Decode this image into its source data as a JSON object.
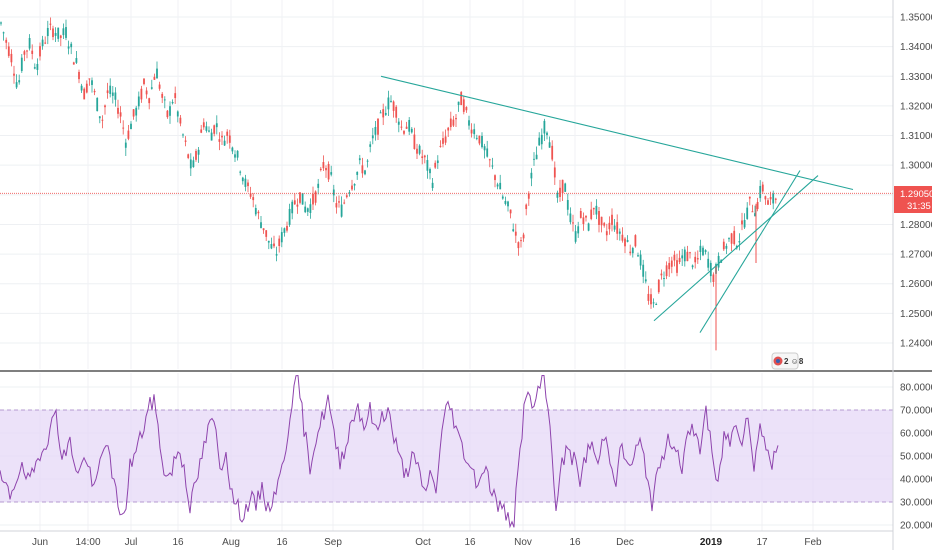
{
  "chart_data": [
    {
      "type": "candlestick",
      "title": "",
      "price_axis": {
        "ticks": [
          "1.35000",
          "1.34000",
          "1.33000",
          "1.32000",
          "1.31000",
          "1.30000",
          "1.28000",
          "1.27000",
          "1.26000",
          "1.25000",
          "1.24000"
        ],
        "range": [
          1.2325,
          1.3545
        ]
      },
      "last_price": {
        "value": 1.2905,
        "label": "1.29050",
        "countdown": "31:35",
        "color": "#ef5350"
      },
      "time_axis": {
        "labels": [
          {
            "text": "Jun",
            "bold": false
          },
          {
            "text": "14:00",
            "bold": false
          },
          {
            "text": "Jul",
            "bold": false
          },
          {
            "text": "16",
            "bold": false
          },
          {
            "text": "Aug",
            "bold": false
          },
          {
            "text": "16",
            "bold": false
          },
          {
            "text": "Sep",
            "bold": false
          },
          {
            "text": "Oct",
            "bold": false
          },
          {
            "text": "16",
            "bold": false
          },
          {
            "text": "Nov",
            "bold": false
          },
          {
            "text": "16",
            "bold": false
          },
          {
            "text": "Dec",
            "bold": false
          },
          {
            "text": "2019",
            "bold": true
          },
          {
            "text": "17",
            "bold": false
          },
          {
            "text": "Feb",
            "bold": false
          }
        ]
      },
      "ohlc_path": [
        [
          0,
          1.349
        ],
        [
          6,
          1.342
        ],
        [
          12,
          1.336
        ],
        [
          18,
          1.326
        ],
        [
          24,
          1.338
        ],
        [
          30,
          1.341
        ],
        [
          36,
          1.333
        ],
        [
          42,
          1.34
        ],
        [
          48,
          1.345
        ],
        [
          54,
          1.346
        ],
        [
          60,
          1.343
        ],
        [
          66,
          1.345
        ],
        [
          72,
          1.338
        ],
        [
          78,
          1.333
        ],
        [
          84,
          1.324
        ],
        [
          90,
          1.33
        ],
        [
          96,
          1.322
        ],
        [
          102,
          1.315
        ],
        [
          108,
          1.325
        ],
        [
          114,
          1.323
        ],
        [
          120,
          1.318
        ],
        [
          126,
          1.308
        ],
        [
          132,
          1.315
        ],
        [
          138,
          1.32
        ],
        [
          144,
          1.327
        ],
        [
          150,
          1.323
        ],
        [
          156,
          1.333
        ],
        [
          162,
          1.323
        ],
        [
          168,
          1.316
        ],
        [
          174,
          1.324
        ],
        [
          180,
          1.314
        ],
        [
          186,
          1.306
        ],
        [
          192,
          1.298
        ],
        [
          198,
          1.305
        ],
        [
          204,
          1.315
        ],
        [
          210,
          1.31
        ],
        [
          216,
          1.314
        ],
        [
          222,
          1.308
        ],
        [
          228,
          1.311
        ],
        [
          234,
          1.306
        ],
        [
          240,
          1.3
        ],
        [
          246,
          1.293
        ],
        [
          252,
          1.29
        ],
        [
          258,
          1.283
        ],
        [
          264,
          1.279
        ],
        [
          270,
          1.273
        ],
        [
          276,
          1.27
        ],
        [
          282,
          1.276
        ],
        [
          288,
          1.281
        ],
        [
          294,
          1.287
        ],
        [
          300,
          1.29
        ],
        [
          306,
          1.285
        ],
        [
          312,
          1.287
        ],
        [
          318,
          1.292
        ],
        [
          324,
          1.301
        ],
        [
          330,
          1.297
        ],
        [
          336,
          1.287
        ],
        [
          342,
          1.285
        ],
        [
          348,
          1.292
        ],
        [
          354,
          1.295
        ],
        [
          360,
          1.3
        ],
        [
          366,
          1.298
        ],
        [
          372,
          1.308
        ],
        [
          378,
          1.313
        ],
        [
          384,
          1.318
        ],
        [
          390,
          1.322
        ],
        [
          396,
          1.319
        ],
        [
          402,
          1.312
        ],
        [
          408,
          1.314
        ],
        [
          414,
          1.308
        ],
        [
          420,
          1.304
        ],
        [
          426,
          1.301
        ],
        [
          432,
          1.294
        ],
        [
          438,
          1.303
        ],
        [
          444,
          1.308
        ],
        [
          450,
          1.313
        ],
        [
          456,
          1.316
        ],
        [
          462,
          1.323
        ],
        [
          468,
          1.315
        ],
        [
          474,
          1.312
        ],
        [
          480,
          1.309
        ],
        [
          486,
          1.304
        ],
        [
          492,
          1.299
        ],
        [
          498,
          1.294
        ],
        [
          504,
          1.288
        ],
        [
          510,
          1.284
        ],
        [
          516,
          1.276
        ],
        [
          522,
          1.272
        ],
        [
          528,
          1.29
        ],
        [
          534,
          1.3
        ],
        [
          540,
          1.308
        ],
        [
          546,
          1.314
        ],
        [
          552,
          1.305
        ],
        [
          558,
          1.287
        ],
        [
          564,
          1.295
        ],
        [
          570,
          1.282
        ],
        [
          576,
          1.276
        ],
        [
          582,
          1.284
        ],
        [
          588,
          1.279
        ],
        [
          594,
          1.287
        ],
        [
          600,
          1.281
        ],
        [
          606,
          1.277
        ],
        [
          612,
          1.282
        ],
        [
          618,
          1.278
        ],
        [
          624,
          1.276
        ],
        [
          630,
          1.272
        ],
        [
          636,
          1.274
        ],
        [
          642,
          1.266
        ],
        [
          648,
          1.256
        ],
        [
          654,
          1.252
        ],
        [
          660,
          1.261
        ],
        [
          666,
          1.265
        ],
        [
          672,
          1.268
        ],
        [
          678,
          1.266
        ],
        [
          684,
          1.27
        ],
        [
          690,
          1.269
        ],
        [
          696,
          1.266
        ],
        [
          702,
          1.272
        ],
        [
          708,
          1.268
        ],
        [
          714,
          1.262
        ],
        [
          720,
          1.269
        ],
        [
          726,
          1.273
        ],
        [
          732,
          1.276
        ],
        [
          738,
          1.274
        ],
        [
          744,
          1.281
        ],
        [
          750,
          1.287
        ],
        [
          756,
          1.285
        ],
        [
          762,
          1.293
        ],
        [
          768,
          1.287
        ],
        [
          774,
          1.288
        ],
        [
          778,
          1.2905
        ]
      ],
      "trendlines": [
        {
          "p1": [
            381,
            1.33
          ],
          "p2": [
            853,
            1.2918
          ],
          "color": "#26a69a"
        },
        {
          "p1": [
            654,
            1.2475
          ],
          "p2": [
            818,
            1.2965
          ],
          "color": "#26a69a"
        },
        {
          "p1": [
            700,
            1.2435
          ],
          "p2": [
            800,
            1.2982
          ],
          "color": "#26a69a"
        }
      ],
      "spike_lows": [
        [
          716,
          1.2375
        ],
        [
          756,
          1.267
        ]
      ],
      "badge": {
        "text": "2 ☺8"
      },
      "colors": {
        "up": "#26a69a",
        "down": "#ef5350",
        "grid": "#eef0f3"
      }
    },
    {
      "type": "line",
      "title": "",
      "y_axis": {
        "ticks": [
          "80.0000",
          "70.0000",
          "60.0000",
          "50.0000",
          "40.0000",
          "30.0000",
          "20.0000"
        ],
        "range": [
          17.5,
          87.0
        ]
      },
      "band": {
        "upper": 70,
        "lower": 30,
        "color": "#e6d8f7"
      },
      "series_points": [
        [
          0,
          40
        ],
        [
          10,
          33
        ],
        [
          20,
          45
        ],
        [
          30,
          38
        ],
        [
          40,
          52
        ],
        [
          50,
          60
        ],
        [
          56,
          71
        ],
        [
          62,
          48
        ],
        [
          70,
          56
        ],
        [
          78,
          42
        ],
        [
          86,
          50
        ],
        [
          94,
          34
        ],
        [
          100,
          47
        ],
        [
          106,
          58
        ],
        [
          112,
          41
        ],
        [
          118,
          30
        ],
        [
          124,
          22
        ],
        [
          130,
          46
        ],
        [
          136,
          52
        ],
        [
          142,
          60
        ],
        [
          148,
          70
        ],
        [
          154,
          75
        ],
        [
          160,
          55
        ],
        [
          166,
          40
        ],
        [
          172,
          44
        ],
        [
          178,
          53
        ],
        [
          184,
          46
        ],
        [
          190,
          28
        ],
        [
          196,
          38
        ],
        [
          202,
          50
        ],
        [
          208,
          61
        ],
        [
          214,
          66
        ],
        [
          220,
          45
        ],
        [
          226,
          52
        ],
        [
          232,
          33
        ],
        [
          238,
          27
        ],
        [
          244,
          24
        ],
        [
          250,
          32
        ],
        [
          256,
          28
        ],
        [
          262,
          37
        ],
        [
          268,
          26
        ],
        [
          274,
          34
        ],
        [
          280,
          40
        ],
        [
          286,
          55
        ],
        [
          292,
          75
        ],
        [
          298,
          84
        ],
        [
          304,
          62
        ],
        [
          310,
          46
        ],
        [
          316,
          58
        ],
        [
          322,
          66
        ],
        [
          328,
          75
        ],
        [
          334,
          58
        ],
        [
          340,
          48
        ],
        [
          346,
          55
        ],
        [
          352,
          66
        ],
        [
          358,
          72
        ],
        [
          364,
          63
        ],
        [
          370,
          70
        ],
        [
          376,
          60
        ],
        [
          382,
          68
        ],
        [
          388,
          70
        ],
        [
          394,
          58
        ],
        [
          400,
          48
        ],
        [
          406,
          42
        ],
        [
          412,
          50
        ],
        [
          418,
          44
        ],
        [
          424,
          34
        ],
        [
          430,
          42
        ],
        [
          436,
          36
        ],
        [
          442,
          60
        ],
        [
          448,
          74
        ],
        [
          454,
          66
        ],
        [
          460,
          56
        ],
        [
          466,
          50
        ],
        [
          472,
          44
        ],
        [
          478,
          38
        ],
        [
          484,
          46
        ],
        [
          490,
          38
        ],
        [
          496,
          30
        ],
        [
          502,
          27
        ],
        [
          508,
          23
        ],
        [
          514,
          22
        ],
        [
          520,
          52
        ],
        [
          526,
          79
        ],
        [
          532,
          70
        ],
        [
          538,
          78
        ],
        [
          544,
          84
        ],
        [
          550,
          62
        ],
        [
          556,
          29
        ],
        [
          562,
          46
        ],
        [
          568,
          54
        ],
        [
          574,
          48
        ],
        [
          580,
          40
        ],
        [
          586,
          50
        ],
        [
          592,
          56
        ],
        [
          598,
          45
        ],
        [
          604,
          60
        ],
        [
          610,
          50
        ],
        [
          616,
          40
        ],
        [
          622,
          55
        ],
        [
          628,
          44
        ],
        [
          634,
          50
        ],
        [
          640,
          56
        ],
        [
          646,
          44
        ],
        [
          652,
          30
        ],
        [
          658,
          42
        ],
        [
          664,
          52
        ],
        [
          670,
          58
        ],
        [
          676,
          54
        ],
        [
          682,
          46
        ],
        [
          688,
          58
        ],
        [
          694,
          62
        ],
        [
          700,
          53
        ],
        [
          706,
          71
        ],
        [
          712,
          50
        ],
        [
          718,
          36
        ],
        [
          724,
          60
        ],
        [
          730,
          56
        ],
        [
          736,
          65
        ],
        [
          742,
          58
        ],
        [
          748,
          70
        ],
        [
          754,
          42
        ],
        [
          760,
          66
        ],
        [
          766,
          54
        ],
        [
          772,
          46
        ],
        [
          778,
          55
        ]
      ],
      "color": "#8e44ad"
    }
  ]
}
